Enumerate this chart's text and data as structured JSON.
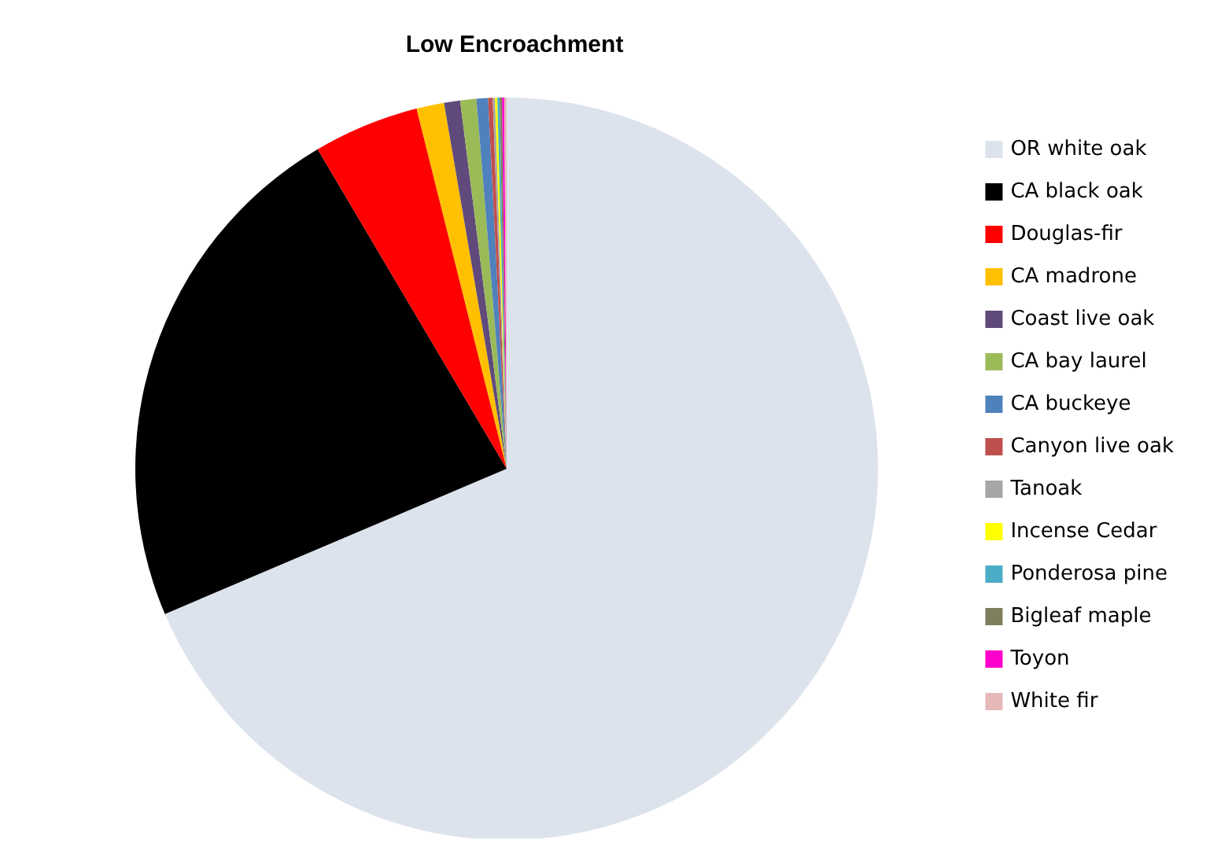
{
  "chart_data": {
    "type": "pie",
    "title": "Low Encroachment",
    "categories": [
      "OR white oak",
      "CA black oak",
      "Douglas-fir",
      "CA madrone",
      "Coast live oak",
      "CA bay laurel",
      "CA buckeye",
      "Canyon live oak",
      "Tanoak",
      "Incense Cedar",
      "Ponderosa pine",
      "Bigleaf maple",
      "Toyon",
      "White fir"
    ],
    "values": [
      68.6,
      22.9,
      4.6,
      1.2,
      0.7,
      0.7,
      0.5,
      0.2,
      0.1,
      0.1,
      0.1,
      0.1,
      0.1,
      0.1
    ],
    "colors": [
      "#dce3ec",
      "#000000",
      "#ff0000",
      "#ffc000",
      "#604a7b",
      "#9bbb59",
      "#4f81bd",
      "#c0504d",
      "#a6a6a6",
      "#ffff00",
      "#4bacc6",
      "#7f7f5f",
      "#ff00cc",
      "#e6b9b8"
    ],
    "legend": "right"
  }
}
